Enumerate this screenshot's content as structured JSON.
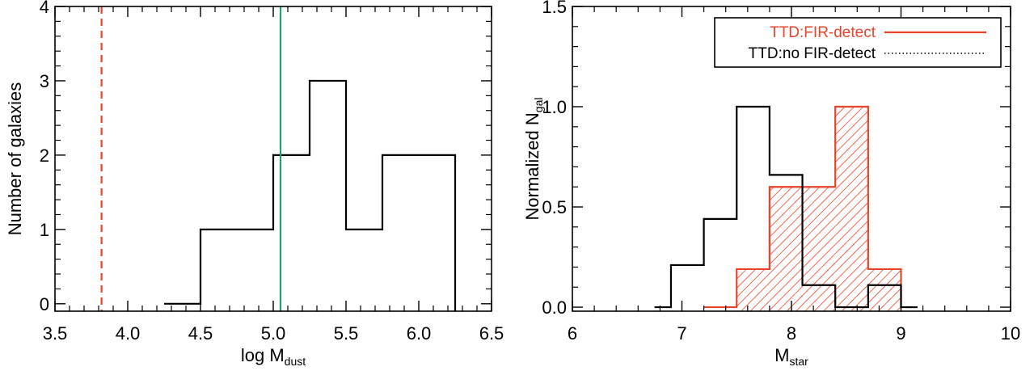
{
  "chart_data": [
    {
      "type": "histogram",
      "xlabel_main": "log M",
      "xlabel_sub": "dust",
      "ylabel": "Number of galaxies",
      "xlim": [
        3.5,
        6.5
      ],
      "ylim": [
        -0.1,
        4.0
      ],
      "xticks": [
        3.5,
        4.0,
        4.5,
        5.0,
        5.5,
        6.0,
        6.5
      ],
      "xtick_labels": [
        "3.5",
        "4.0",
        "4.5",
        "5.0",
        "5.5",
        "6.0",
        "6.5"
      ],
      "yticks": [
        0,
        1,
        2,
        3,
        4
      ],
      "ytick_labels": [
        "0",
        "1",
        "2",
        "3",
        "4"
      ],
      "bins": [
        {
          "x0": 4.25,
          "x1": 4.5,
          "count": 0
        },
        {
          "x0": 4.5,
          "x1": 5.0,
          "count": 1
        },
        {
          "x0": 5.0,
          "x1": 5.25,
          "count": 2
        },
        {
          "x0": 5.25,
          "x1": 5.5,
          "count": 3
        },
        {
          "x0": 5.5,
          "x1": 5.75,
          "count": 1
        },
        {
          "x0": 5.75,
          "x1": 6.25,
          "count": 2
        }
      ],
      "vlines": [
        {
          "x": 3.82,
          "style": "dashed",
          "color": "#e8442a"
        },
        {
          "x": 5.05,
          "style": "solid",
          "color": "#1fa07a"
        }
      ],
      "colors": {
        "hist": "#000000"
      }
    },
    {
      "type": "histogram",
      "xlabel_main": "M",
      "xlabel_sub": "star",
      "ylabel_main": "Normalized N",
      "ylabel_sub": "gal",
      "xlim": [
        6,
        10
      ],
      "ylim": [
        -0.02,
        1.5
      ],
      "xticks": [
        6,
        7,
        8,
        9,
        10
      ],
      "xtick_labels": [
        "6",
        "7",
        "8",
        "9",
        "10"
      ],
      "yticks": [
        0.0,
        0.5,
        1.0,
        1.5
      ],
      "ytick_labels": [
        "0.0",
        "0.5",
        "1.0",
        "1.5"
      ],
      "series": [
        {
          "name": "TTD:FIR-detect",
          "color": "#e8442a",
          "hatched": true,
          "edges": [
            7.2,
            7.5,
            7.8,
            8.1,
            8.4,
            8.7,
            9.0
          ],
          "values": [
            0.0,
            0.19,
            0.6,
            0.6,
            1.0,
            0.19
          ]
        },
        {
          "name": "TTD:no FIR-detect",
          "color": "#000000",
          "hatched": false,
          "edges": [
            6.75,
            6.9,
            7.2,
            7.5,
            7.8,
            8.1,
            8.4,
            8.7,
            9.0
          ],
          "values": [
            0.0,
            0.21,
            0.44,
            1.0,
            0.66,
            0.11,
            0.0,
            0.11
          ]
        }
      ],
      "legend_position": "top-right"
    }
  ]
}
